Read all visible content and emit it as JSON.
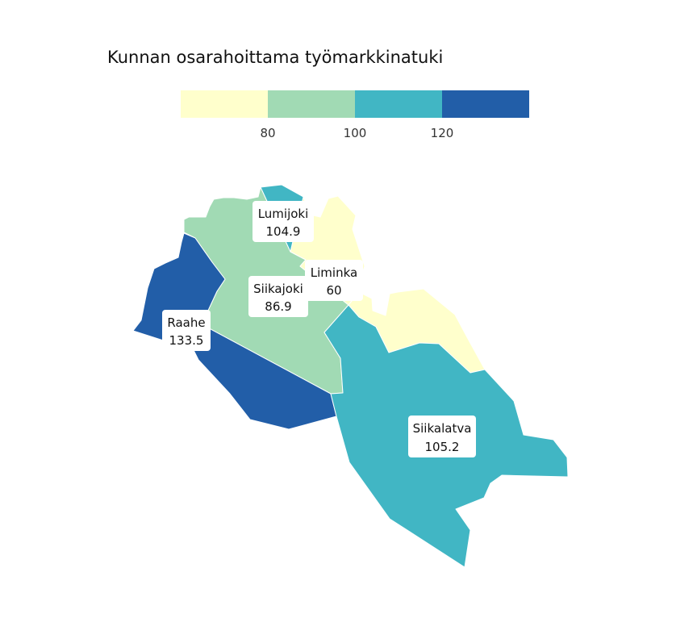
{
  "title": "Kunnan osarahoittama työmarkkinatuki",
  "legend": {
    "breaks": [
      "80",
      "100",
      "120"
    ],
    "bins": [
      {
        "color": "#ffffcc"
      },
      {
        "color": "#a1dab4"
      },
      {
        "color": "#41b6c4"
      },
      {
        "color": "#225ea8"
      }
    ]
  },
  "regions": [
    {
      "id": "siikajoki",
      "name": "Siikajoki",
      "value": "86.9",
      "color": "#a1dab4"
    },
    {
      "id": "raahe",
      "name": "Raahe",
      "value": "133.5",
      "color": "#225ea8"
    },
    {
      "id": "lumijoki",
      "name": "Lumijoki",
      "value": "104.9",
      "color": "#41b6c4"
    },
    {
      "id": "liminka",
      "name": "Liminka",
      "value": "60",
      "color": "#ffffcc"
    },
    {
      "id": "siikalatva",
      "name": "Siikalatva",
      "value": "105.2",
      "color": "#41b6c4"
    }
  ]
}
